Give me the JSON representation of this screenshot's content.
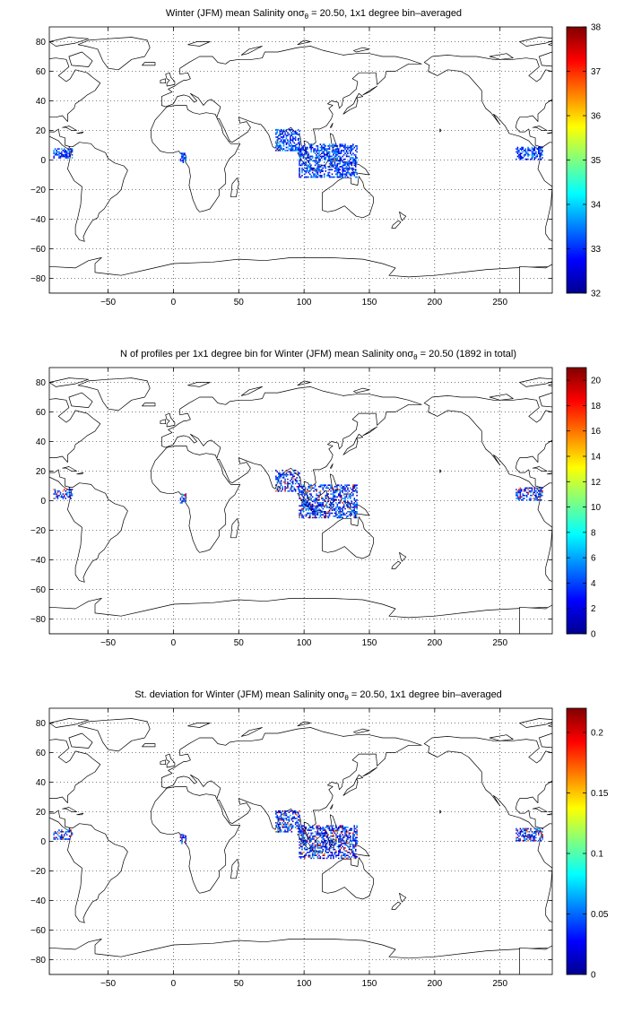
{
  "figure": {
    "panels": [
      {
        "id": "mean",
        "title_pre": "Winter (JFM) mean Salinity on",
        "title_sigma": "σ",
        "title_sub": "θ",
        "title_post": " = 20.50, 1x1 degree bin–averaged",
        "x_ticks": [
          "−50",
          "0",
          "50",
          "100",
          "150",
          "200",
          "250"
        ],
        "y_ticks": [
          "80",
          "60",
          "40",
          "20",
          "0",
          "−20",
          "−40",
          "−60",
          "−80"
        ],
        "colorbar_ticks": [
          "38",
          "37",
          "36",
          "35",
          "34",
          "33",
          "32"
        ],
        "colorbar_range": [
          32,
          38
        ]
      },
      {
        "id": "count",
        "title_pre": "N of profiles per 1x1 degree bin for Winter (JFM) mean Salinity on",
        "title_sigma": "σ",
        "title_sub": "θ",
        "title_post": " = 20.50 (1892 in total)",
        "x_ticks": [
          "−50",
          "0",
          "50",
          "100",
          "150",
          "200",
          "250"
        ],
        "y_ticks": [
          "80",
          "60",
          "40",
          "20",
          "0",
          "−20",
          "−40",
          "−60",
          "−80"
        ],
        "colorbar_ticks": [
          "20",
          "18",
          "16",
          "14",
          "12",
          "10",
          "8",
          "6",
          "4",
          "2",
          "0"
        ],
        "colorbar_range": [
          0,
          21
        ]
      },
      {
        "id": "std",
        "title_pre": "St. deviation for Winter (JFM) mean Salinity on",
        "title_sigma": "σ",
        "title_sub": "θ",
        "title_post": " = 20.50, 1x1 degree bin–averaged",
        "x_ticks": [
          "−50",
          "0",
          "50",
          "100",
          "150",
          "200",
          "250"
        ],
        "y_ticks": [
          "80",
          "60",
          "40",
          "20",
          "0",
          "−20",
          "−40",
          "−60",
          "−80"
        ],
        "colorbar_ticks": [
          "0.2",
          "0.15",
          "0.1",
          "0.05",
          "0"
        ],
        "colorbar_range": [
          0,
          0.22
        ]
      }
    ],
    "map_extent": {
      "lon": [
        -95,
        290
      ],
      "lat": [
        -90,
        90
      ]
    },
    "colormap": "jet",
    "data_clusters": [
      {
        "region": "eastern-tropical-pacific",
        "lon": [
          -92,
          -78
        ],
        "lat": [
          1,
          7
        ]
      },
      {
        "region": "gulf-of-guinea",
        "lon": [
          5,
          9
        ],
        "lat": [
          -2,
          4
        ]
      },
      {
        "region": "bay-of-bengal",
        "lon": [
          78,
          96
        ],
        "lat": [
          6,
          20
        ]
      },
      {
        "region": "indonesian-seas",
        "lon": [
          96,
          140
        ],
        "lat": [
          -12,
          10
        ]
      },
      {
        "region": "eastern-tropical-pacific-east",
        "lon": [
          262,
          282
        ],
        "lat": [
          0,
          8
        ]
      }
    ]
  }
}
